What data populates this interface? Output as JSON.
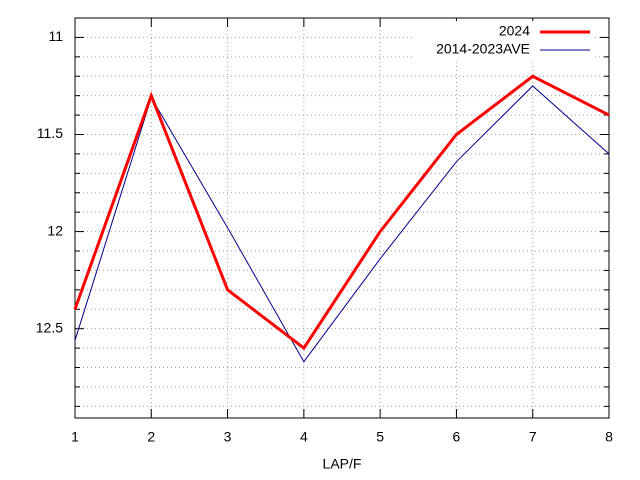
{
  "chart_data": {
    "type": "line",
    "x_label": "LAP/F",
    "x": [
      1,
      2,
      3,
      4,
      5,
      6,
      7,
      8
    ],
    "series": [
      {
        "name": "2024",
        "color": "#ff0000",
        "width": 3,
        "values": [
          12.4,
          11.3,
          12.3,
          12.6,
          12.0,
          11.5,
          11.2,
          11.4
        ]
      },
      {
        "name": "2014-2023AVE",
        "color": "#00008b",
        "width": 1,
        "values": [
          12.56,
          11.31,
          11.98,
          12.67,
          12.14,
          11.64,
          11.25,
          11.6
        ]
      }
    ],
    "xlim": [
      1,
      8
    ],
    "xticks": [
      1,
      2,
      3,
      4,
      5,
      6,
      7,
      8
    ],
    "ylim": [
      10.9,
      12.96
    ],
    "y_reversed": true,
    "yticks": [
      11,
      11.5,
      12,
      12.5
    ],
    "yminorticks": [
      10.9,
      11.1,
      11.2,
      11.3,
      11.4,
      11.6,
      11.7,
      11.8,
      11.9,
      12.1,
      12.2,
      12.3,
      12.4,
      12.6,
      12.7,
      12.8,
      12.9
    ],
    "grid": true,
    "legend": "top-right"
  }
}
